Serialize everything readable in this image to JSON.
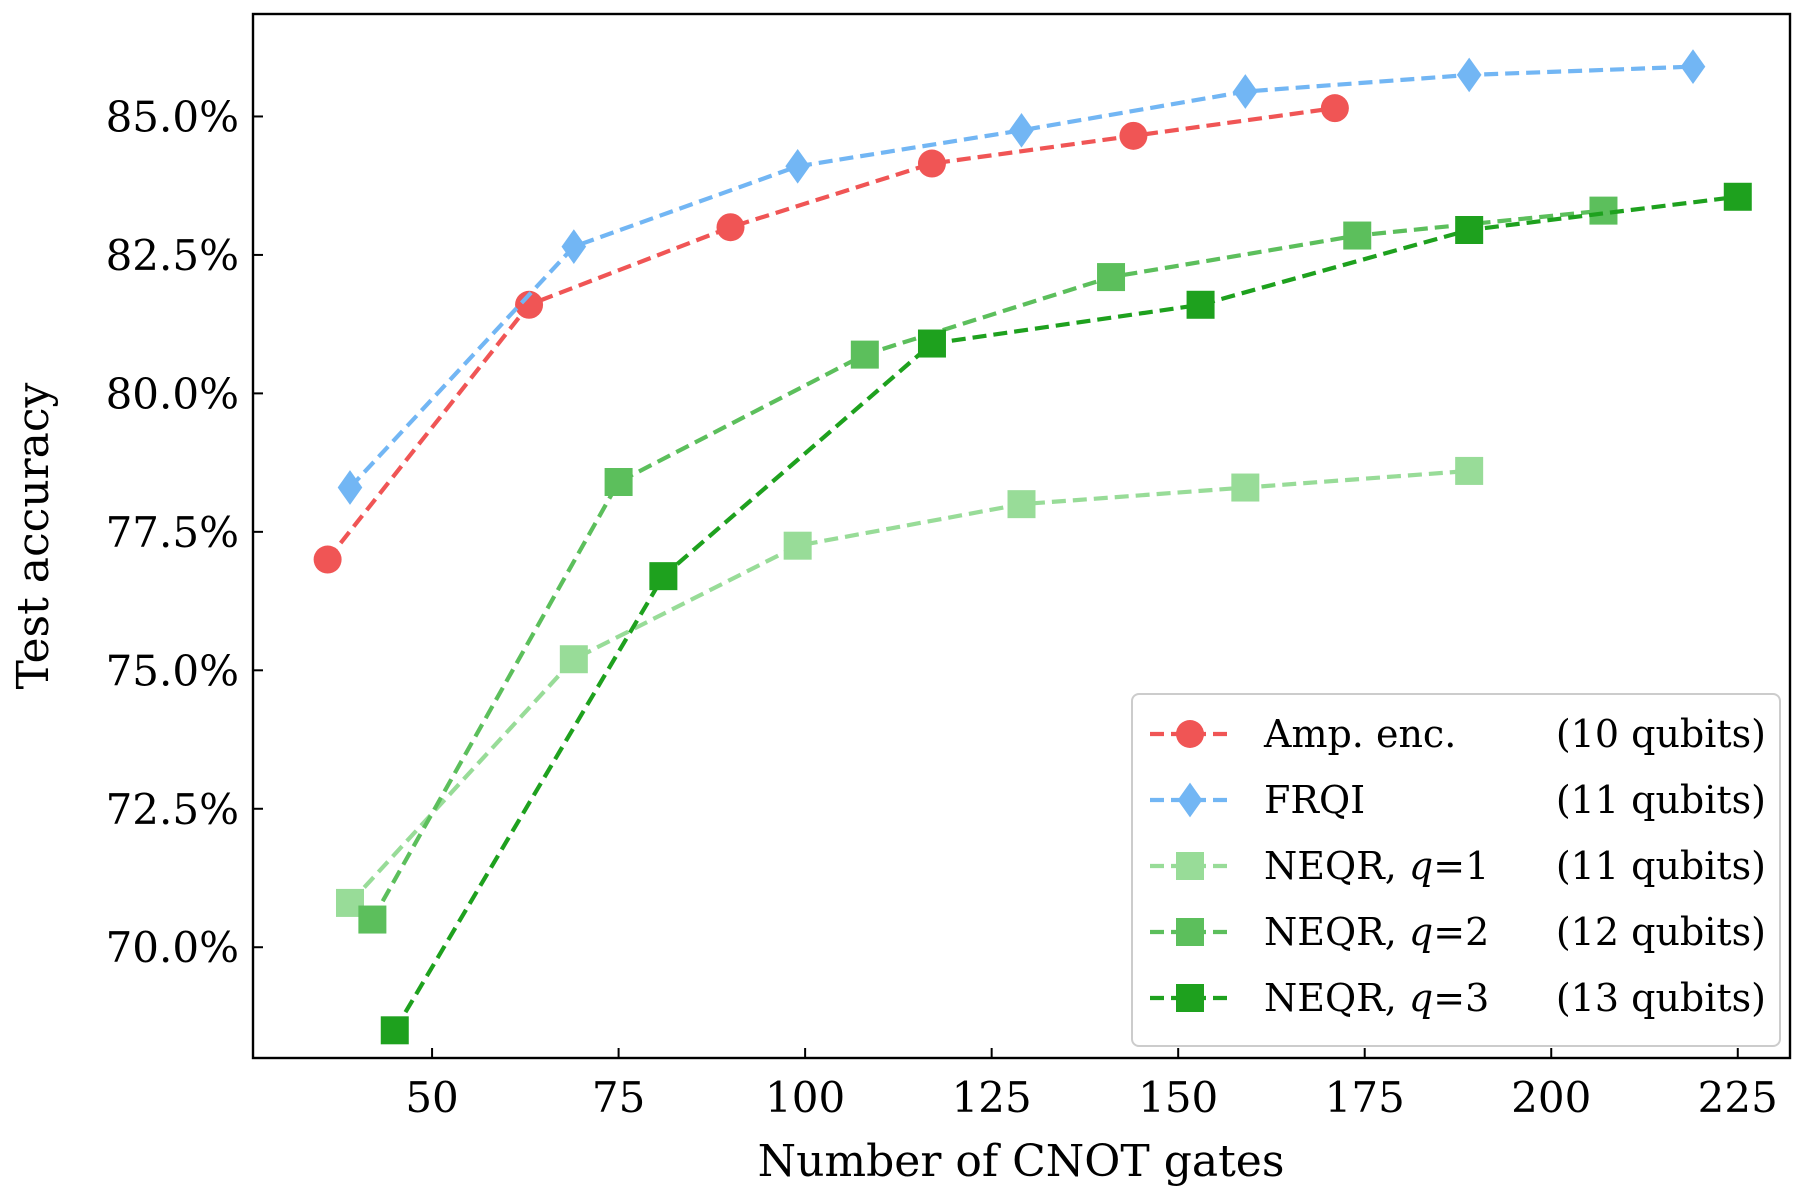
{
  "chart_data": {
    "type": "line",
    "xlabel": "Number of CNOT gates",
    "ylabel": "Test accuracy",
    "xlim": [
      26,
      232
    ],
    "ylim": [
      68.0,
      86.85
    ],
    "xticks": [
      {
        "value": 50,
        "label": "50"
      },
      {
        "value": 75,
        "label": "75"
      },
      {
        "value": 100,
        "label": "100"
      },
      {
        "value": 125,
        "label": "125"
      },
      {
        "value": 150,
        "label": "150"
      },
      {
        "value": 175,
        "label": "175"
      },
      {
        "value": 200,
        "label": "200"
      },
      {
        "value": 225,
        "label": "225"
      }
    ],
    "yticks": [
      {
        "value": 70.0,
        "label": "70.0%"
      },
      {
        "value": 72.5,
        "label": "72.5%"
      },
      {
        "value": 75.0,
        "label": "75.0%"
      },
      {
        "value": 77.5,
        "label": "77.5%"
      },
      {
        "value": 80.0,
        "label": "80.0%"
      },
      {
        "value": 82.5,
        "label": "82.5%"
      },
      {
        "value": 85.0,
        "label": "85.0%"
      }
    ],
    "grid": false,
    "legend_position": "lower-right",
    "series": [
      {
        "name": "Amp. enc.",
        "qubits": "(10 qubits)",
        "color": "#f05555",
        "marker": "circle",
        "x": [
          36,
          63,
          90,
          117,
          144,
          171
        ],
        "y": [
          77.0,
          81.6,
          83.0,
          84.15,
          84.65,
          85.15
        ]
      },
      {
        "name": "FRQI",
        "qubits": "(11 qubits)",
        "color": "#72b6f4",
        "marker": "diamond",
        "x": [
          39,
          69,
          99,
          129,
          159,
          189,
          219
        ],
        "y": [
          78.3,
          82.65,
          84.1,
          84.75,
          85.45,
          85.75,
          85.9
        ]
      },
      {
        "name": "NEQR, ",
        "name_q": "q",
        "name_eq": "=1",
        "qubits": "(11 qubits)",
        "color": "#98dc98",
        "marker": "square",
        "x": [
          39,
          69,
          99,
          129,
          159,
          189
        ],
        "y": [
          70.8,
          75.2,
          77.25,
          78.0,
          78.3,
          78.6
        ]
      },
      {
        "name": "NEQR, ",
        "name_q": "q",
        "name_eq": "=2",
        "qubits": "(12 qubits)",
        "color": "#5cbf5c",
        "marker": "square",
        "x": [
          42,
          75,
          108,
          141,
          174,
          207
        ],
        "y": [
          70.5,
          78.4,
          80.7,
          82.1,
          82.85,
          83.3
        ]
      },
      {
        "name": "NEQR, ",
        "name_q": "q",
        "name_eq": "=3",
        "qubits": "(13 qubits)",
        "color": "#1ea11e",
        "marker": "square",
        "x": [
          45,
          81,
          117,
          153,
          189,
          225
        ],
        "y": [
          68.5,
          76.7,
          80.9,
          81.6,
          82.95,
          83.55
        ]
      }
    ]
  }
}
